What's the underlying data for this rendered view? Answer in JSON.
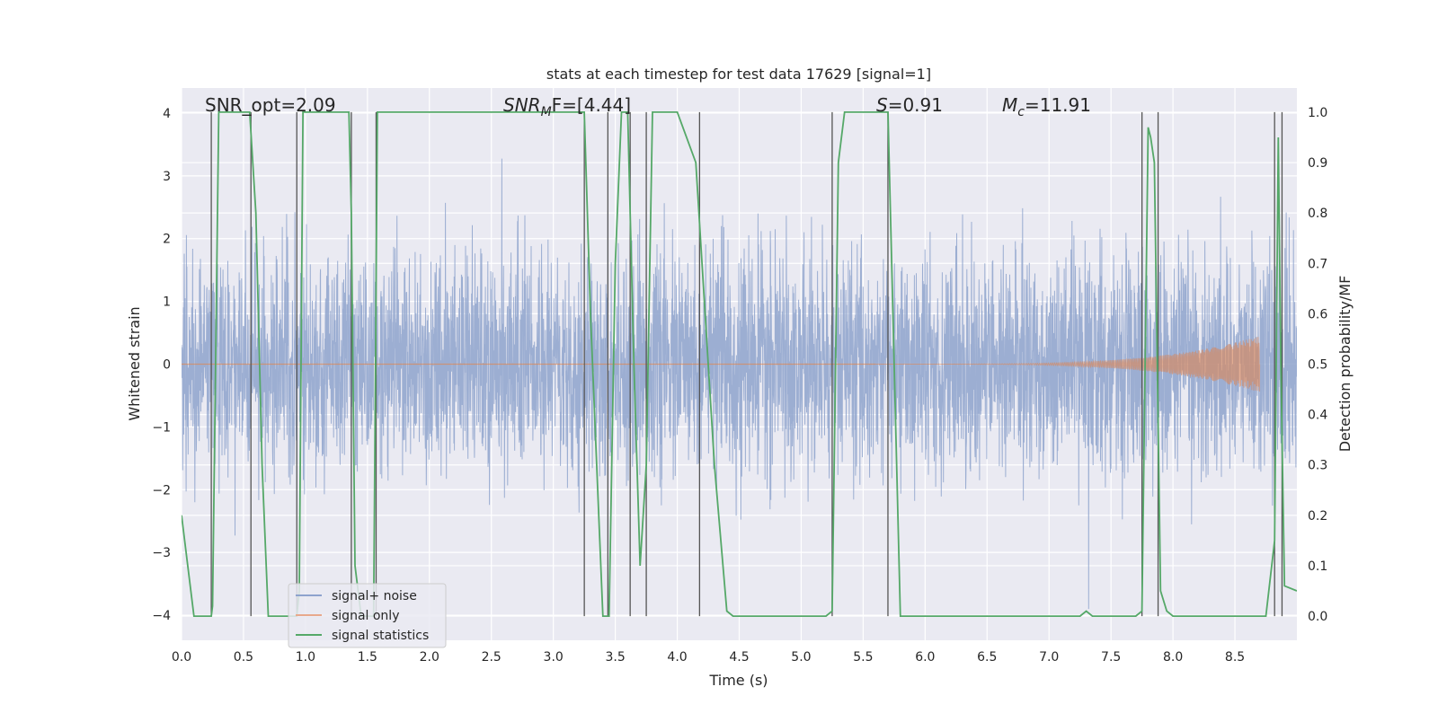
{
  "chart_data": {
    "type": "line",
    "title": "stats at each timestep for test data 17629 [signal=1]",
    "xlabel": "Time (s)",
    "ylabel_left": "Whitened strain",
    "ylabel_right": "Detection probability/MF",
    "xlim": [
      0.0,
      9.0
    ],
    "ylim_left": [
      -4.4,
      4.4
    ],
    "ylim_right": [
      -0.048,
      1.048
    ],
    "x_ticks": [
      0.0,
      0.5,
      1.0,
      1.5,
      2.0,
      2.5,
      3.0,
      3.5,
      4.0,
      4.5,
      5.0,
      5.5,
      6.0,
      6.5,
      7.0,
      7.5,
      8.0,
      8.5
    ],
    "x_tick_labels": [
      "0.0",
      "0.5",
      "1.0",
      "1.5",
      "2.0",
      "2.5",
      "3.0",
      "3.5",
      "4.0",
      "4.5",
      "5.0",
      "5.5",
      "6.0",
      "6.5",
      "7.0",
      "7.5",
      "8.0",
      "8.5"
    ],
    "y_left_ticks": [
      4,
      3,
      2,
      1,
      0,
      -1,
      -2,
      -3,
      -4
    ],
    "y_left_tick_labels": [
      "4",
      "3",
      "2",
      "1",
      "0",
      "−1",
      "−2",
      "−3",
      "−4"
    ],
    "y_right_ticks": [
      1.0,
      0.9,
      0.8,
      0.7,
      0.6,
      0.5,
      0.4,
      0.3,
      0.2,
      0.1,
      0.0
    ],
    "y_right_tick_labels": [
      "1.0",
      "0.9",
      "0.8",
      "0.7",
      "0.6",
      "0.5",
      "0.4",
      "0.3",
      "0.2",
      "0.1",
      "0.0"
    ],
    "annotations": {
      "snr_opt": "SNR_opt=2.09",
      "snr_mf_base": "SNR",
      "snr_mf_sub": "M",
      "snr_mf_rest": "F=[4.44]",
      "s_sym": "S",
      "s_rest": "=0.91",
      "mc_sym": "M",
      "mc_sub": "c",
      "mc_rest": "=11.91"
    },
    "legend": {
      "location": "lower-left",
      "entries": [
        {
          "label": "signal+ noise",
          "color": "#8ea3cd"
        },
        {
          "label": "signal only",
          "color": "#e8a98c"
        },
        {
          "label": "signal statistics",
          "color": "#55a868"
        }
      ]
    },
    "series": [
      {
        "name": "signal+ noise",
        "color": "#8ea3cd",
        "x_range": [
          0.0,
          9.0
        ],
        "samples": 4608,
        "noise_std": 0.85,
        "noise_peak_range": [
          -3.9,
          3.5
        ]
      },
      {
        "name": "signal only",
        "color": "#dd8452",
        "description_values": {
          "chirp_start_s": 5.6,
          "chirp_end_s": 8.7,
          "max_amplitude": 0.45
        }
      },
      {
        "name": "signal statistics",
        "color": "#55a868",
        "axis": "right",
        "x": [
          0.0,
          0.05,
          0.1,
          0.15,
          0.2,
          0.24,
          0.25,
          0.3,
          0.35,
          0.4,
          0.45,
          0.5,
          0.55,
          0.6,
          0.65,
          0.7,
          0.75,
          0.8,
          0.85,
          0.9,
          0.93,
          0.95,
          0.98,
          1.0,
          1.05,
          1.1,
          1.15,
          1.2,
          1.25,
          1.3,
          1.35,
          1.37,
          1.4,
          1.45,
          1.5,
          1.55,
          1.58,
          1.62,
          1.7,
          2.0,
          2.5,
          3.0,
          3.25,
          3.3,
          3.35,
          3.4,
          3.45,
          3.5,
          3.55,
          3.6,
          3.65,
          3.7,
          3.75,
          3.8,
          3.85,
          4.0,
          4.15,
          4.2,
          4.3,
          4.4,
          4.45,
          4.5,
          4.8,
          5.0,
          5.2,
          5.25,
          5.3,
          5.35,
          5.5,
          5.6,
          5.7,
          5.75,
          5.8,
          6.0,
          6.5,
          7.0,
          7.25,
          7.3,
          7.35,
          7.5,
          7.7,
          7.75,
          7.8,
          7.82,
          7.85,
          7.9,
          7.95,
          8.0,
          8.1,
          8.5,
          8.75,
          8.82,
          8.85,
          8.87,
          8.9,
          9.0
        ],
        "values": [
          0.2,
          0.1,
          0.0,
          0.0,
          0.0,
          0.0,
          0.02,
          1.0,
          1.0,
          1.0,
          1.0,
          1.0,
          1.0,
          0.8,
          0.3,
          0.0,
          0.0,
          0.0,
          0.0,
          0.0,
          0.0,
          0.05,
          1.0,
          1.0,
          1.0,
          1.0,
          1.0,
          1.0,
          1.0,
          1.0,
          1.0,
          0.8,
          0.1,
          0.0,
          0.0,
          0.0,
          1.0,
          1.0,
          1.0,
          1.0,
          1.0,
          1.0,
          1.0,
          0.6,
          0.3,
          0.0,
          0.0,
          0.7,
          1.0,
          1.0,
          0.5,
          0.1,
          0.3,
          1.0,
          1.0,
          1.0,
          0.9,
          0.7,
          0.3,
          0.01,
          0.0,
          0.0,
          0.0,
          0.0,
          0.0,
          0.01,
          0.9,
          1.0,
          1.0,
          1.0,
          1.0,
          0.5,
          0.0,
          0.0,
          0.0,
          0.0,
          0.0,
          0.01,
          0.0,
          0.0,
          0.0,
          0.01,
          0.97,
          0.95,
          0.9,
          0.05,
          0.01,
          0.0,
          0.0,
          0.0,
          0.0,
          0.15,
          0.95,
          0.5,
          0.06,
          0.05
        ]
      }
    ],
    "vertical_lines_x": [
      0.24,
      0.56,
      0.93,
      1.37,
      1.57,
      3.25,
      3.44,
      3.62,
      3.75,
      4.18,
      5.25,
      5.7,
      7.75,
      7.88,
      8.82,
      8.88
    ]
  }
}
